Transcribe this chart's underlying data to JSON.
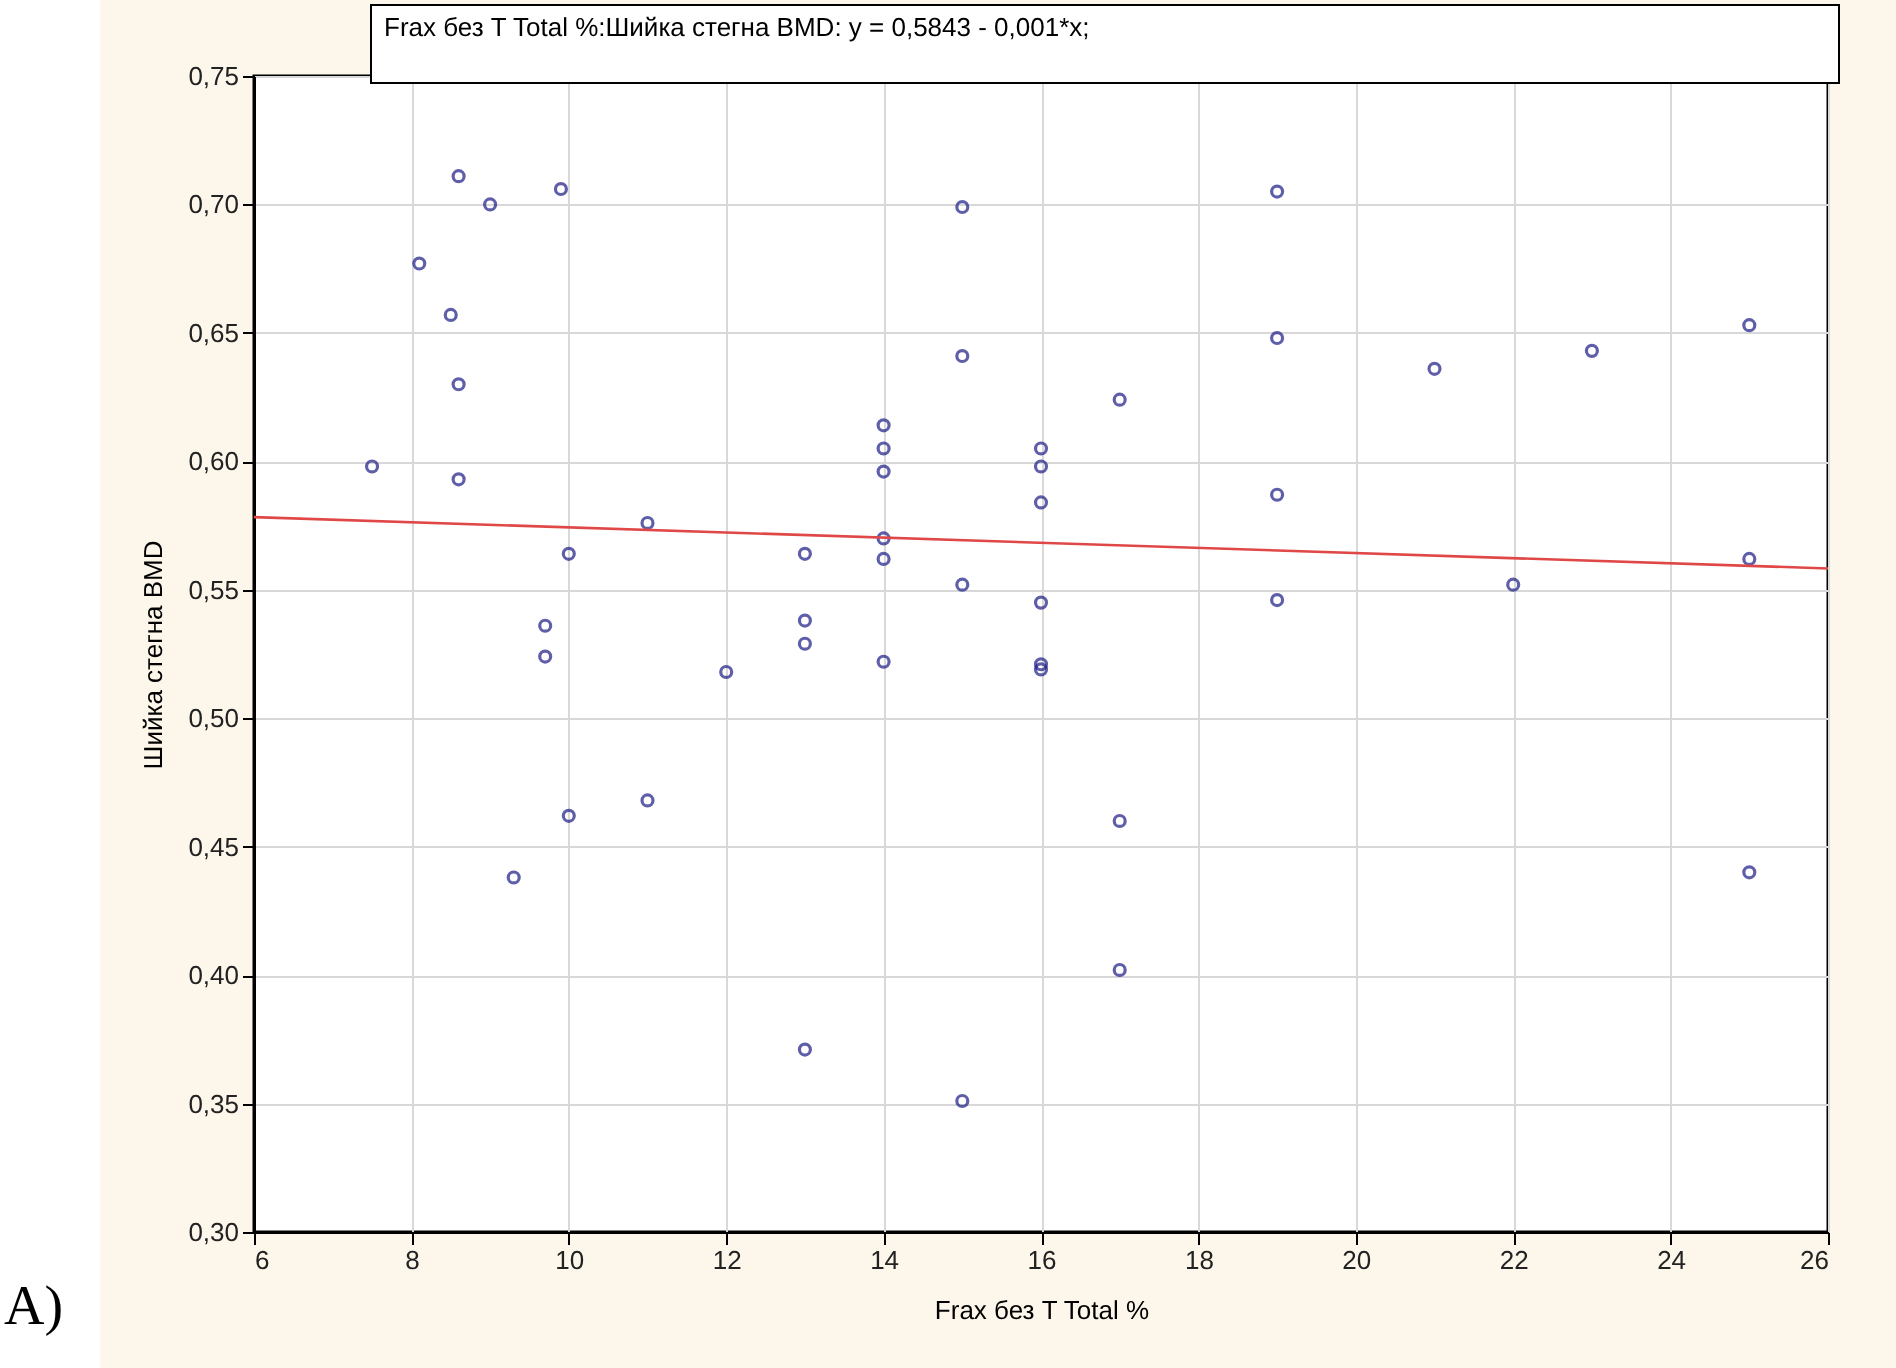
{
  "chart_data": {
    "type": "scatter",
    "xlabel": "Frax без T Total %",
    "ylabel": "Шийка стегна BMD",
    "annotations": [
      "Frax без T Total %:Шийка стегна BMD:   y = 0,5843 - 0,001*x;",
      "A)"
    ],
    "xlim": [
      6,
      26
    ],
    "xticks": [
      6,
      8,
      10,
      12,
      14,
      16,
      18,
      20,
      22,
      24,
      26
    ],
    "ylim": [
      0.3,
      0.75
    ],
    "yticks": [
      {
        "value": 0.3,
        "label": "0,30"
      },
      {
        "value": 0.35,
        "label": "0,35"
      },
      {
        "value": 0.4,
        "label": "0,40"
      },
      {
        "value": 0.45,
        "label": "0,45"
      },
      {
        "value": 0.5,
        "label": "0,50"
      },
      {
        "value": 0.55,
        "label": "0,55"
      },
      {
        "value": 0.6,
        "label": "0,60"
      },
      {
        "value": 0.65,
        "label": "0,65"
      },
      {
        "value": 0.7,
        "label": "0,70"
      },
      {
        "value": 0.75,
        "label": "0,75"
      }
    ],
    "grid": true,
    "series": [
      {
        "marker": "circle",
        "color": "#1c1c86",
        "x": [
          7.5,
          8.1,
          8.5,
          8.6,
          8.6,
          8.6,
          9.0,
          9.3,
          9.7,
          9.7,
          9.9,
          10,
          10,
          11,
          11,
          12,
          13,
          13,
          13,
          13,
          14,
          14,
          14,
          14,
          14,
          14,
          15,
          15,
          15,
          15,
          16,
          16,
          16,
          16,
          16,
          16,
          17,
          17,
          17,
          19,
          19,
          19,
          19,
          21,
          22,
          23,
          25,
          25,
          25
        ],
        "values": [
          0.598,
          0.677,
          0.657,
          0.711,
          0.63,
          0.593,
          0.7,
          0.438,
          0.536,
          0.524,
          0.706,
          0.564,
          0.462,
          0.576,
          0.468,
          0.518,
          0.564,
          0.538,
          0.529,
          0.371,
          0.614,
          0.605,
          0.596,
          0.57,
          0.562,
          0.522,
          0.699,
          0.641,
          0.552,
          0.351,
          0.605,
          0.598,
          0.584,
          0.545,
          0.521,
          0.519,
          0.624,
          0.46,
          0.402,
          0.705,
          0.648,
          0.587,
          0.546,
          0.636,
          0.552,
          0.643,
          0.653,
          0.562,
          0.44
        ]
      },
      {
        "type": "line",
        "color": "#e04848",
        "line_style": "solid",
        "x": [
          6,
          26
        ],
        "values": [
          0.5783,
          0.5583
        ]
      }
    ]
  }
}
